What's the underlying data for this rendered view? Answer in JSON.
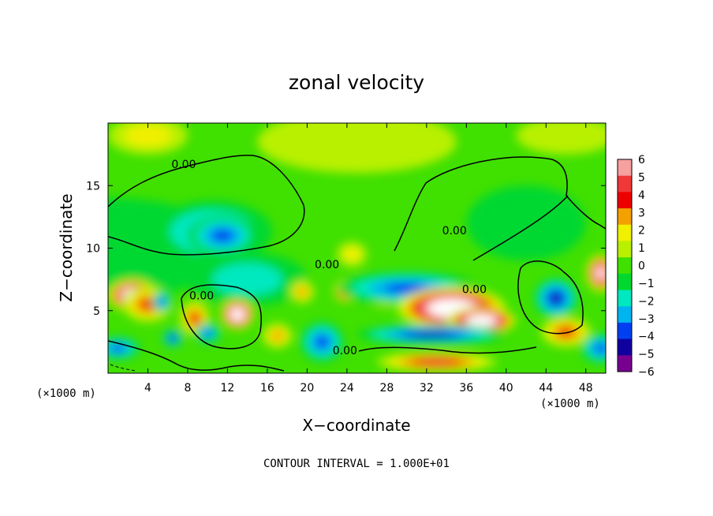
{
  "chart_data": {
    "type": "heatmap",
    "title": "zonal velocity",
    "xlabel": "X−coordinate",
    "ylabel": "Z−coordinate",
    "x_unit_left": "(×1000 m)",
    "x_unit_right": "(×1000 m)",
    "footer": "CONTOUR INTERVAL = 1.000E+01",
    "xlim": [
      0,
      50
    ],
    "ylim": [
      0,
      20
    ],
    "x_ticks": [
      4,
      8,
      12,
      16,
      20,
      24,
      28,
      32,
      36,
      40,
      44,
      48
    ],
    "y_ticks": [
      5,
      10,
      15
    ],
    "colorbar": {
      "min": -6,
      "max": 6,
      "labels": [
        "6",
        "5",
        "4",
        "3",
        "2",
        "1",
        "0",
        "−1",
        "−2",
        "−3",
        "−4",
        "−5",
        "−6"
      ],
      "colors": [
        "#f6a0a0",
        "#f03838",
        "#ee0000",
        "#f4a000",
        "#f0f000",
        "#b8f000",
        "#40e000",
        "#00d830",
        "#00e8c0",
        "#00b4f0",
        "#0040f0",
        "#1000a0",
        "#780090"
      ]
    },
    "contour_labels": [
      {
        "text": "0.00",
        "x": 7.6,
        "z": 16.4
      },
      {
        "text": "0.00",
        "x": 9.4,
        "z": 5.9
      },
      {
        "text": "0.00",
        "x": 22.0,
        "z": 8.4
      },
      {
        "text": "0.00",
        "x": 23.8,
        "z": 1.5
      },
      {
        "text": "0.00",
        "x": 34.8,
        "z": 11.1
      },
      {
        "text": "0.00",
        "x": 36.8,
        "z": 6.4
      }
    ],
    "field_blobs": [
      {
        "x": 0.5,
        "z": 10.0,
        "rx": 12,
        "rz": 4,
        "v": -0.8
      },
      {
        "x": 10.5,
        "z": 11.3,
        "rx": 6.0,
        "rz": 2.5,
        "v": -3.0
      },
      {
        "x": 11.5,
        "z": 11.0,
        "rx": 3.5,
        "rz": 1.6,
        "v": -3.5
      },
      {
        "x": 14.0,
        "z": 7.5,
        "rx": 6.0,
        "rz": 2.2,
        "v": -2.0
      },
      {
        "x": 2.5,
        "z": 6.2,
        "rx": 2.5,
        "rz": 1.3,
        "v": 10.0
      },
      {
        "x": 4.0,
        "z": 5.5,
        "rx": 2.5,
        "rz": 1.4,
        "v": 4.0
      },
      {
        "x": 5.4,
        "z": 5.7,
        "rx": 1.0,
        "rz": 0.8,
        "v": -4.0
      },
      {
        "x": 1.0,
        "z": 2.0,
        "rx": 2.2,
        "rz": 0.9,
        "v": -3.5
      },
      {
        "x": 13.0,
        "z": 4.7,
        "rx": 1.7,
        "rz": 1.2,
        "v": 10.0
      },
      {
        "x": 8.7,
        "z": 4.4,
        "rx": 1.5,
        "rz": 1.4,
        "v": 4.0
      },
      {
        "x": 10.0,
        "z": 3.2,
        "rx": 1.3,
        "rz": 0.8,
        "v": -4.0
      },
      {
        "x": 6.5,
        "z": 2.8,
        "rx": 1.0,
        "rz": 0.7,
        "v": -5.0
      },
      {
        "x": 17.0,
        "z": 3.0,
        "rx": 1.5,
        "rz": 1.0,
        "v": 3.0
      },
      {
        "x": 21.5,
        "z": 2.5,
        "rx": 2.2,
        "rz": 1.6,
        "v": -4.0
      },
      {
        "x": 19.5,
        "z": 6.5,
        "rx": 1.2,
        "rz": 0.9,
        "v": 3.0
      },
      {
        "x": 23.8,
        "z": 6.6,
        "rx": 1.1,
        "rz": 0.9,
        "v": 8.0
      },
      {
        "x": 28.0,
        "z": 6.3,
        "rx": 2.0,
        "rz": 1.0,
        "v": 7.0
      },
      {
        "x": 30.0,
        "z": 6.8,
        "rx": 7.0,
        "rz": 1.3,
        "v": -4.0
      },
      {
        "x": 34.5,
        "z": 5.2,
        "rx": 5.5,
        "rz": 1.7,
        "v": 10.0
      },
      {
        "x": 37.5,
        "z": 4.2,
        "rx": 3.5,
        "rz": 1.1,
        "v": 10.0
      },
      {
        "x": 32.5,
        "z": 3.1,
        "rx": 7.5,
        "rz": 0.8,
        "v": -4.5
      },
      {
        "x": 33.0,
        "z": 0.9,
        "rx": 6.0,
        "rz": 0.8,
        "v": 5.0
      },
      {
        "x": 45.0,
        "z": 6.0,
        "rx": 2.2,
        "rz": 1.6,
        "v": -5.0
      },
      {
        "x": 42.0,
        "z": 12.0,
        "rx": 6.0,
        "rz": 3.0,
        "v": -1.2
      },
      {
        "x": 46.0,
        "z": 3.3,
        "rx": 2.5,
        "rz": 1.2,
        "v": 4.0
      },
      {
        "x": 49.5,
        "z": 8.0,
        "rx": 1.5,
        "rz": 1.5,
        "v": 8.0
      },
      {
        "x": 49.5,
        "z": 2.0,
        "rx": 2.0,
        "rz": 1.2,
        "v": -4.0
      },
      {
        "x": 25.0,
        "z": 18.5,
        "rx": 10.0,
        "rz": 2.5,
        "v": 1.3
      },
      {
        "x": 4.0,
        "z": 19.0,
        "rx": 4.0,
        "rz": 1.5,
        "v": 1.6
      },
      {
        "x": 46.0,
        "z": 19.0,
        "rx": 5.0,
        "rz": 1.5,
        "v": 1.5
      },
      {
        "x": 24.5,
        "z": 9.5,
        "rx": 1.5,
        "rz": 1.0,
        "v": 2.0
      }
    ]
  }
}
